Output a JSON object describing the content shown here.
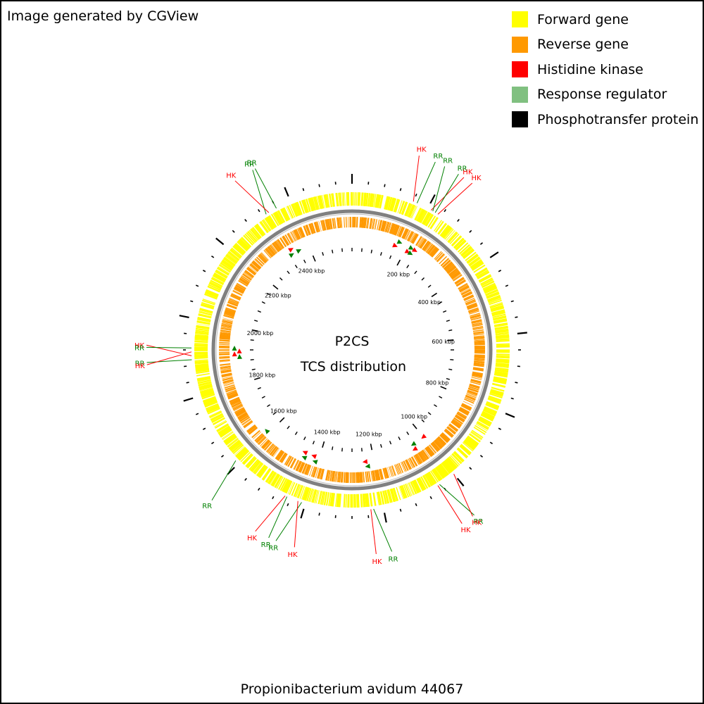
{
  "credit": "Image generated by CGView",
  "legend": [
    {
      "label": "Forward gene",
      "color": "#ffff00"
    },
    {
      "label": "Reverse gene",
      "color": "#ff9900"
    },
    {
      "label": "Histidine kinase",
      "color": "#ff0000"
    },
    {
      "label": "Response regulator",
      "color": "#80c080"
    },
    {
      "label": "Phosphotransfer protein",
      "color": "#000000"
    }
  ],
  "map": {
    "title_line1": "P2CS",
    "title_line2": "TCS distribution",
    "organism": "Propionibacterium avidum 44067",
    "genome_length_kbp": 2560,
    "scale_labels": [
      "200 kbp",
      "400 kbp",
      "600 kbp",
      "800 kbp",
      "1000 kbp",
      "1200 kbp",
      "1400 kbp",
      "1600 kbp",
      "1800 kbp",
      "2000 kbp",
      "2200 kbp",
      "2400 kbp"
    ],
    "colors": {
      "hk": "#ff0000",
      "rr": "#008000",
      "backbone": "#808080"
    }
  },
  "tcs_features": [
    {
      "label": "HK",
      "position_kbp": 160
    },
    {
      "label": "RR",
      "position_kbp": 170
    },
    {
      "label": "HK",
      "position_kbp": 210
    },
    {
      "label": "RR",
      "position_kbp": 215
    },
    {
      "label": "RR",
      "position_kbp": 222
    },
    {
      "label": "HK",
      "position_kbp": 230
    },
    {
      "label": "RR",
      "position_kbp": 1045
    },
    {
      "label": "HK",
      "position_kbp": 1050
    },
    {
      "label": "HK",
      "position_kbp": 1000
    },
    {
      "label": "RR",
      "position_kbp": 1225
    },
    {
      "label": "HK",
      "position_kbp": 1232
    },
    {
      "label": "RR",
      "position_kbp": 1410
    },
    {
      "label": "HK",
      "position_kbp": 1420
    },
    {
      "label": "RR",
      "position_kbp": 1450
    },
    {
      "label": "HK",
      "position_kbp": 1455
    },
    {
      "label": "RR",
      "position_kbp": 1610
    },
    {
      "label": "RR",
      "position_kbp": 1895
    },
    {
      "label": "HK",
      "position_kbp": 1905
    },
    {
      "label": "HK",
      "position_kbp": 1915
    },
    {
      "label": "RR",
      "position_kbp": 1925
    },
    {
      "label": "RR",
      "position_kbp": 2330
    },
    {
      "label": "HK",
      "position_kbp": 2338
    },
    {
      "label": "RR",
      "position_kbp": 2360
    }
  ]
}
